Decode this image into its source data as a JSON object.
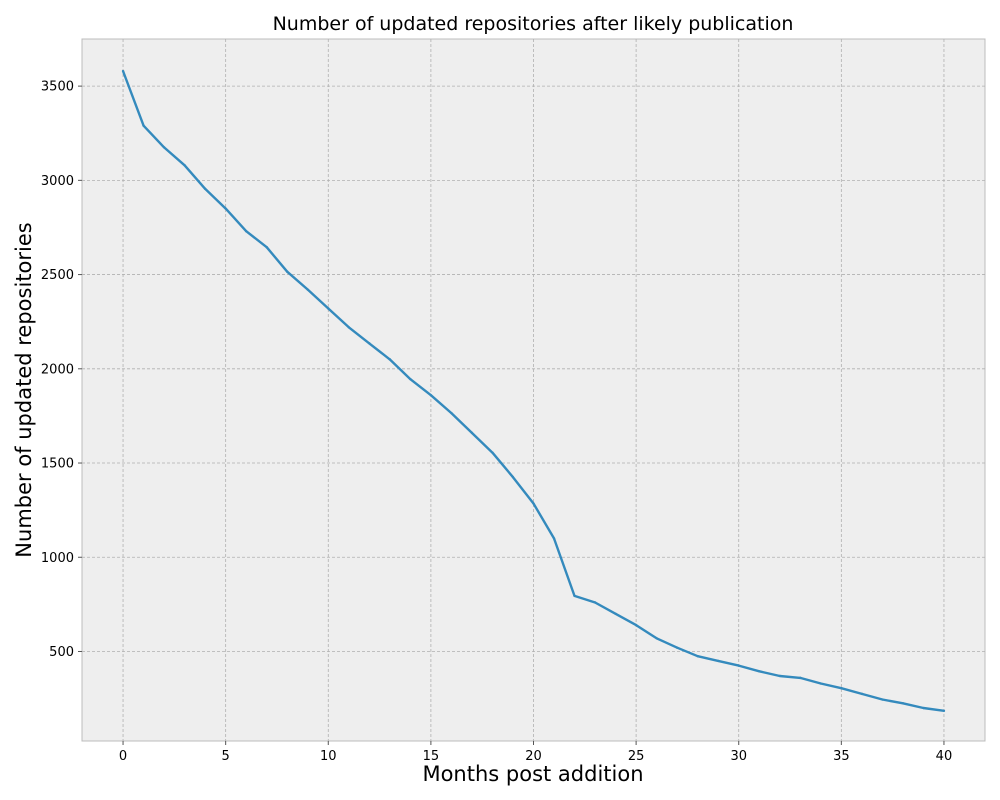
{
  "chart_data": {
    "type": "line",
    "title": "Number of updated repositories after likely publication",
    "xlabel": "Months post addition",
    "ylabel": "Number of updated repositories",
    "xlim": [
      -2,
      42
    ],
    "ylim": [
      25,
      3750
    ],
    "xticks": [
      0,
      5,
      10,
      15,
      20,
      25,
      30,
      35,
      40
    ],
    "yticks": [
      500,
      1000,
      1500,
      2000,
      2500,
      3000,
      3500
    ],
    "grid": true,
    "series": [
      {
        "color": "#348abd",
        "x": [
          0,
          1,
          2,
          3,
          4,
          5,
          6,
          7,
          8,
          9,
          10,
          11,
          12,
          13,
          14,
          15,
          16,
          17,
          18,
          19,
          20,
          21,
          22,
          23,
          24,
          25,
          26,
          27,
          28,
          29,
          30,
          31,
          32,
          33,
          34,
          35,
          36,
          37,
          38,
          39,
          40
        ],
        "values": [
          3580,
          3290,
          3175,
          3080,
          2955,
          2850,
          2730,
          2645,
          2515,
          2420,
          2320,
          2220,
          2135,
          2050,
          1945,
          1860,
          1765,
          1660,
          1555,
          1425,
          1285,
          1100,
          795,
          760,
          700,
          640,
          570,
          520,
          475,
          450,
          425,
          395,
          370,
          360,
          330,
          305,
          275,
          245,
          225,
          200,
          185
        ]
      }
    ]
  }
}
